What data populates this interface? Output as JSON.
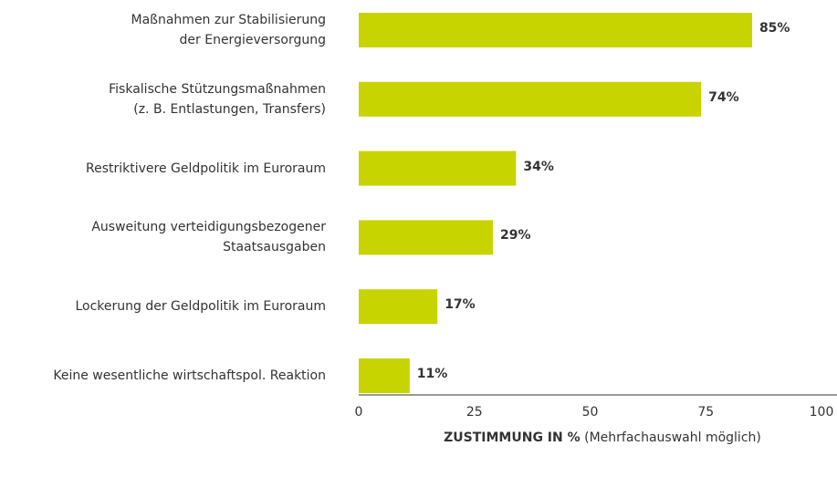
{
  "chart_data": {
    "type": "barh",
    "categories": [
      "Maßnahmen zur Stabilisierung\nder Energieversorgung",
      "Fiskalische Stützungsmaßnahmen\n(z. B. Entlastungen, Transfers)",
      "Restriktivere Geldpolitik im Euroraum",
      "Ausweitung verteidigungsbezogener\nStaatsausgaben",
      "Lockerung der Geldpolitik im Euroraum",
      "Keine wesentliche wirtschaftspol. Reaktion"
    ],
    "values": [
      85,
      74,
      34,
      29,
      17,
      11
    ],
    "value_labels": [
      "85%",
      "74%",
      "34%",
      "29%",
      "17%",
      "11%"
    ],
    "color": "#c8d400",
    "xlim": [
      0,
      100
    ],
    "xticks": [
      0,
      25,
      50,
      75,
      100
    ],
    "xlabel": "ZUSTIMMUNG IN %",
    "xlabel_note": "(Mehrfachauswahl möglich)"
  }
}
